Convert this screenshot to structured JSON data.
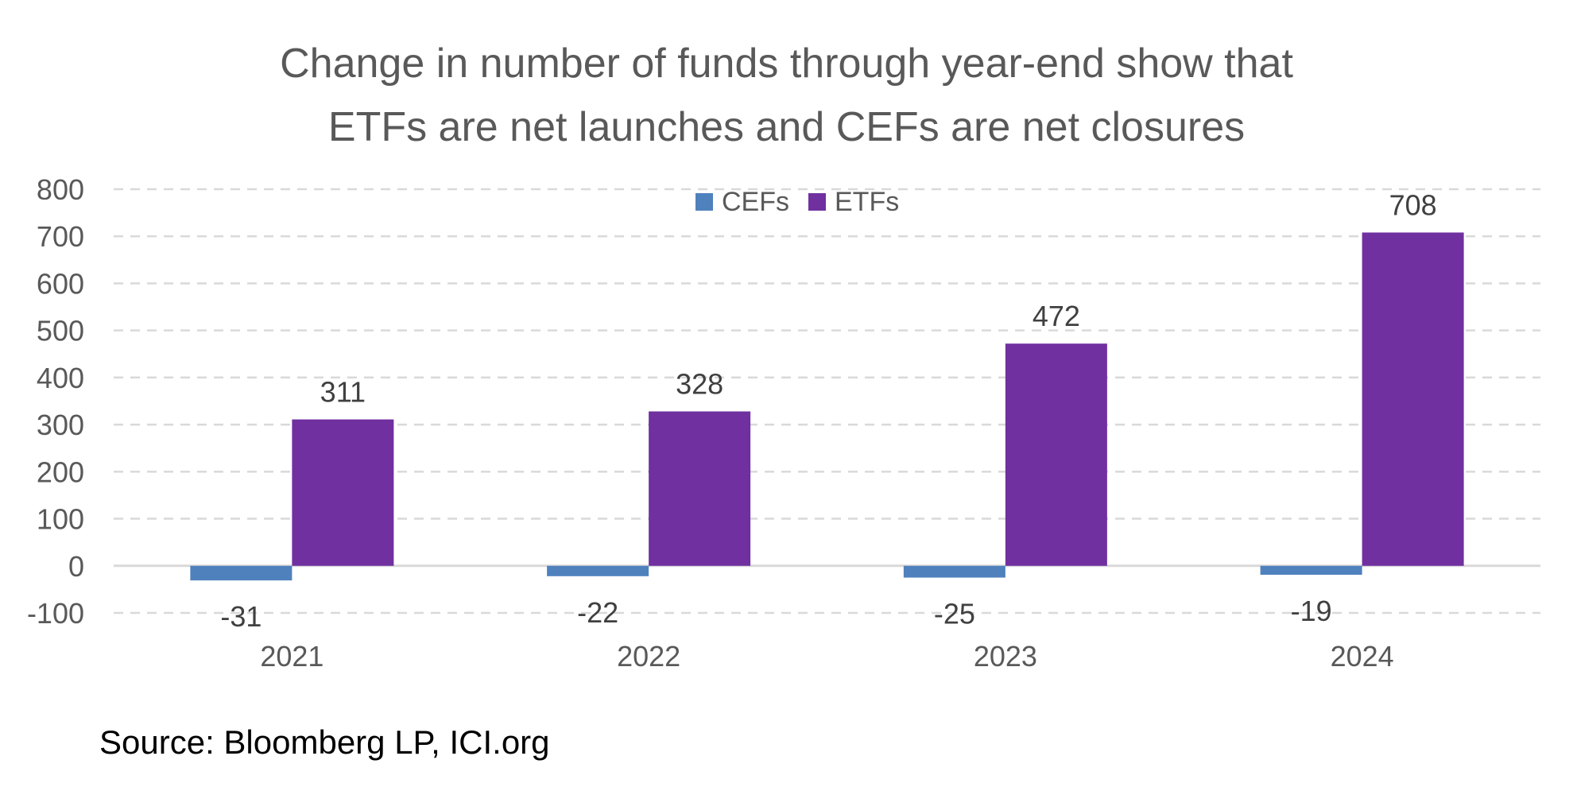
{
  "chart_data": {
    "type": "bar",
    "title_lines": [
      "Change in number of funds through year-end show that",
      "ETFs are net launches and CEFs are net closures"
    ],
    "categories": [
      "2021",
      "2022",
      "2023",
      "2024"
    ],
    "series": [
      {
        "name": "CEFs",
        "color": "#4F81BD",
        "values": [
          -31,
          -22,
          -25,
          -19
        ],
        "labels": [
          "-31",
          "-22",
          "-25",
          "-19"
        ]
      },
      {
        "name": "ETFs",
        "color": "#7030A0",
        "values": [
          311,
          328,
          472,
          708
        ],
        "labels": [
          "311",
          "328",
          "472",
          "708"
        ]
      }
    ],
    "ylim": [
      -100,
      800
    ],
    "yticks": [
      -100,
      0,
      100,
      200,
      300,
      400,
      500,
      600,
      700,
      800
    ],
    "ytick_labels": [
      "-100",
      "0",
      "100",
      "200",
      "300",
      "400",
      "500",
      "600",
      "700",
      "800"
    ],
    "grid": true,
    "grid_style": "dashed",
    "legend_position": "top-center",
    "xlabel": "",
    "ylabel": ""
  },
  "source_text": "Source: Bloomberg LP, ICI.org",
  "colors": {
    "text": "#595959",
    "axis_line": "#D9D9D9",
    "grid": "#D9D9D9"
  }
}
